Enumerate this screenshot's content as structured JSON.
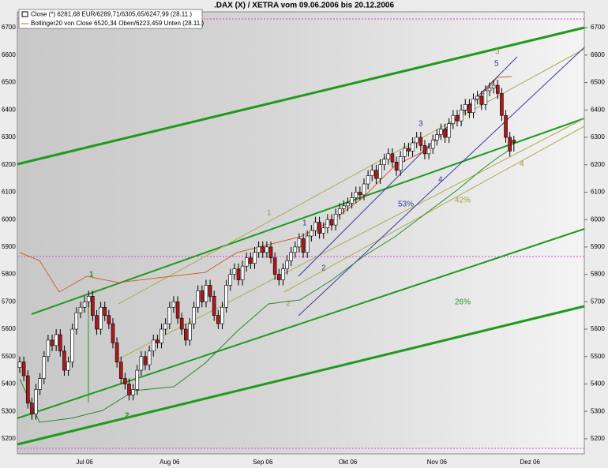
{
  "chart_data": {
    "type": "candlestick",
    "title": ".DAX (X) / XETRA vom 09.06.2006  bis 20.12.2006",
    "legend": [
      "Close (*) 6281,68 EUR/6289,71/6305,65/6247,99 (28.11.)",
      "Bollinger20 von Close 6520,34 Oben/6223,459 Unten (28.11.)"
    ],
    "annotations": [
      "1",
      "2",
      "1",
      "2",
      "1",
      "2",
      "3",
      "4",
      "5",
      "3",
      "4",
      "53%",
      "42%",
      "26%"
    ],
    "up_color": "#ffffff",
    "down_color": "#b01818",
    "ylim": [
      5145,
      6758
    ],
    "yticks": [
      5200,
      5300,
      5400,
      5500,
      5600,
      5700,
      5800,
      5900,
      6000,
      6100,
      6200,
      6300,
      6400,
      6500,
      6600,
      6700
    ],
    "categories": [
      null,
      null,
      null,
      null,
      null,
      null,
      null,
      null,
      null,
      null,
      null,
      null,
      null,
      null,
      null,
      null,
      "Jul 06",
      null,
      null,
      null,
      null,
      null,
      null,
      null,
      null,
      null,
      null,
      null,
      null,
      null,
      null,
      null,
      null,
      null,
      null,
      null,
      null,
      "Aug 06",
      null,
      null,
      null,
      null,
      null,
      null,
      null,
      null,
      null,
      null,
      null,
      null,
      null,
      null,
      null,
      null,
      null,
      null,
      null,
      null,
      null,
      null,
      "Sep 06",
      null,
      null,
      null,
      null,
      null,
      null,
      null,
      null,
      null,
      null,
      null,
      null,
      null,
      null,
      null,
      null,
      null,
      null,
      null,
      null,
      "Okt 06",
      null,
      null,
      null,
      null,
      null,
      null,
      null,
      null,
      null,
      null,
      null,
      null,
      null,
      null,
      null,
      null,
      null,
      null,
      null,
      null,
      null,
      "Nov 06",
      null,
      null,
      null,
      null,
      null,
      null,
      null,
      null,
      null,
      null,
      null,
      null,
      null,
      null,
      null,
      null,
      null,
      null,
      null,
      null,
      null,
      null,
      "Dez 06",
      null,
      null,
      null,
      null,
      null,
      null,
      null,
      null,
      null,
      null,
      null,
      null,
      null
    ],
    "open": [
      5460,
      5480,
      5430,
      5330,
      5290,
      5380,
      5420,
      5500,
      5560,
      5540,
      5580,
      5520,
      5450,
      5480,
      5600,
      5660,
      5680,
      5700,
      5720,
      5650,
      5600,
      5680,
      5650,
      5620,
      5550,
      5480,
      5420,
      5400,
      5360,
      5380,
      5450,
      5500,
      5470,
      5520,
      5560,
      5550,
      5600,
      5620,
      5680,
      5700,
      5640,
      5600,
      5560,
      5620,
      5680,
      5740,
      5700,
      5760,
      5720,
      5650,
      5620,
      5680,
      5760,
      5800,
      5820,
      5780,
      5830,
      5860,
      5840,
      5880,
      5900,
      5880,
      5900,
      5860,
      5800,
      5780,
      5820,
      5850,
      5880,
      5900,
      5930,
      5880,
      5940,
      5960,
      5990,
      5950,
      5970,
      6000,
      5980,
      6020,
      6040,
      6050,
      6060,
      6080,
      6100,
      6090,
      6130,
      6160,
      6180,
      6150,
      6200,
      6220,
      6240,
      6210,
      6180,
      6230,
      6260,
      6250,
      6280,
      6300,
      6270,
      6240,
      6260,
      6290,
      6310,
      6330,
      6300,
      6350,
      6380,
      6360,
      6400,
      6420,
      6390,
      6440,
      6450,
      6420,
      6470,
      6480,
      6490,
      6460,
      6380,
      6300,
      6289.71,
      null,
      null,
      null,
      null,
      null,
      null,
      null,
      null,
      null,
      null,
      null,
      null,
      null,
      null,
      null,
      null,
      null
    ],
    "high": [
      5500,
      5500,
      5450,
      5350,
      5400,
      5440,
      5520,
      5580,
      5580,
      5600,
      5600,
      5540,
      5500,
      5620,
      5680,
      5700,
      5720,
      5740,
      5740,
      5670,
      5700,
      5700,
      5670,
      5640,
      5570,
      5500,
      5440,
      5420,
      5400,
      5470,
      5520,
      5520,
      5540,
      5580,
      5580,
      5620,
      5640,
      5700,
      5720,
      5720,
      5660,
      5620,
      5640,
      5700,
      5760,
      5760,
      5780,
      5780,
      5740,
      5670,
      5700,
      5780,
      5820,
      5840,
      5840,
      5850,
      5880,
      5880,
      5900,
      5920,
      5920,
      5920,
      5920,
      5880,
      5820,
      5840,
      5870,
      5900,
      5920,
      5950,
      5950,
      5960,
      5980,
      6010,
      6010,
      5990,
      6020,
      6020,
      6040,
      6060,
      6070,
      6080,
      6100,
      6120,
      6120,
      6150,
      6180,
      6200,
      6200,
      6220,
      6240,
      6260,
      6260,
      6230,
      6250,
      6280,
      6280,
      6300,
      6320,
      6320,
      6290,
      6280,
      6310,
      6330,
      6350,
      6350,
      6370,
      6400,
      6400,
      6420,
      6440,
      6440,
      6460,
      6470,
      6470,
      6490,
      6500,
      6510,
      6510,
      6480,
      6400,
      6320,
      6305.65,
      null,
      null,
      null,
      null,
      null,
      null,
      null,
      null,
      null,
      null,
      null,
      null,
      null,
      null,
      null,
      null,
      null
    ],
    "low": [
      5440,
      5410,
      5310,
      5270,
      5270,
      5360,
      5400,
      5480,
      5520,
      5520,
      5500,
      5430,
      5430,
      5460,
      5580,
      5640,
      5660,
      5680,
      5630,
      5580,
      5580,
      5630,
      5600,
      5530,
      5460,
      5400,
      5380,
      5340,
      5340,
      5360,
      5430,
      5450,
      5450,
      5500,
      5530,
      5530,
      5580,
      5600,
      5660,
      5620,
      5580,
      5540,
      5540,
      5600,
      5660,
      5680,
      5680,
      5700,
      5630,
      5600,
      5600,
      5660,
      5740,
      5780,
      5760,
      5760,
      5810,
      5820,
      5820,
      5860,
      5860,
      5860,
      5840,
      5780,
      5760,
      5760,
      5800,
      5830,
      5860,
      5880,
      5860,
      5860,
      5920,
      5940,
      5930,
      5930,
      5950,
      5960,
      5960,
      6000,
      6020,
      6030,
      6040,
      6060,
      6070,
      6070,
      6110,
      6140,
      6130,
      6130,
      6180,
      6200,
      6190,
      6160,
      6160,
      6210,
      6230,
      6230,
      6260,
      6250,
      6220,
      6220,
      6240,
      6270,
      6290,
      6280,
      6280,
      6330,
      6340,
      6340,
      6380,
      6370,
      6370,
      6420,
      6400,
      6400,
      6450,
      6460,
      6440,
      6360,
      6280,
      6230,
      6247.99,
      null,
      null,
      null,
      null,
      null,
      null,
      null,
      null,
      null,
      null,
      null,
      null,
      null,
      null,
      null,
      null,
      null
    ],
    "close": [
      5480,
      5430,
      5330,
      5290,
      5380,
      5420,
      5500,
      5560,
      5540,
      5580,
      5520,
      5450,
      5480,
      5600,
      5660,
      5680,
      5700,
      5720,
      5650,
      5600,
      5680,
      5650,
      5620,
      5550,
      5480,
      5420,
      5400,
      5360,
      5380,
      5450,
      5500,
      5470,
      5520,
      5560,
      5550,
      5600,
      5620,
      5680,
      5700,
      5640,
      5600,
      5560,
      5620,
      5680,
      5740,
      5700,
      5760,
      5720,
      5650,
      5620,
      5680,
      5760,
      5800,
      5820,
      5780,
      5830,
      5860,
      5840,
      5880,
      5900,
      5880,
      5900,
      5860,
      5800,
      5780,
      5820,
      5850,
      5880,
      5900,
      5930,
      5880,
      5940,
      5960,
      5990,
      5950,
      5970,
      6000,
      5980,
      6020,
      6040,
      6050,
      6060,
      6080,
      6100,
      6090,
      6130,
      6160,
      6180,
      6150,
      6200,
      6220,
      6240,
      6210,
      6180,
      6230,
      6260,
      6250,
      6280,
      6300,
      6270,
      6240,
      6260,
      6290,
      6310,
      6330,
      6300,
      6350,
      6380,
      6360,
      6400,
      6420,
      6390,
      6440,
      6450,
      6420,
      6470,
      6480,
      6490,
      6460,
      6380,
      6300,
      6250,
      6281.68,
      null,
      null,
      null,
      null,
      null,
      null,
      null,
      null,
      null,
      null,
      null,
      null,
      null,
      null,
      null,
      null,
      null
    ]
  }
}
